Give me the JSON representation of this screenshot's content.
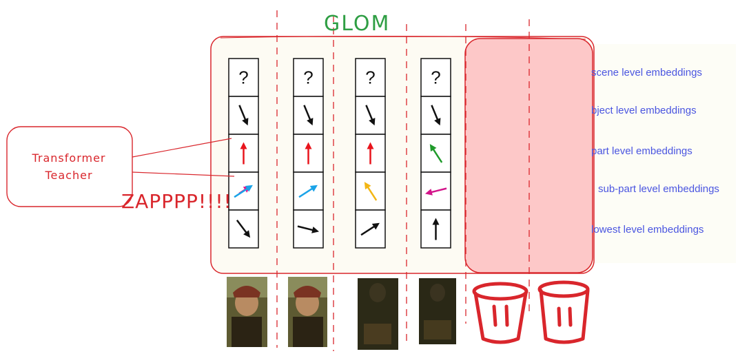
{
  "title": "GLOM",
  "teacher_label_line1": "Transformer",
  "teacher_label_line2": "Teacher",
  "zap_text": "ZAPPPP!!!!",
  "level_labels": [
    "scene level embeddings",
    "bject level embeddings",
    "part level embeddings",
    "sub-part level embeddings",
    "lowest level embeddings"
  ],
  "question_mark": "?",
  "columns": [
    {
      "arrows": [
        {
          "type": "unknown"
        },
        {
          "color": "#111111",
          "dir": "down-right-steep"
        },
        {
          "color": "#e8141c",
          "dir": "up"
        },
        {
          "color": "#1aa3e8",
          "dir": "up-right",
          "extra_color": "#e0198f"
        },
        {
          "color": "#111111",
          "dir": "down-right"
        }
      ]
    },
    {
      "arrows": [
        {
          "type": "unknown"
        },
        {
          "color": "#111111",
          "dir": "down-right-steep"
        },
        {
          "color": "#e8141c",
          "dir": "up"
        },
        {
          "color": "#1aa3e8",
          "dir": "up-right"
        },
        {
          "color": "#111111",
          "dir": "right-slight-down"
        }
      ]
    },
    {
      "arrows": [
        {
          "type": "unknown"
        },
        {
          "color": "#111111",
          "dir": "down-right-steep"
        },
        {
          "color": "#e8141c",
          "dir": "up"
        },
        {
          "color": "#f3b614",
          "dir": "up-left"
        },
        {
          "color": "#111111",
          "dir": "up-right"
        }
      ]
    },
    {
      "arrows": [
        {
          "type": "unknown"
        },
        {
          "color": "#111111",
          "dir": "down-right-steep"
        },
        {
          "color": "#1f9a2a",
          "dir": "up-left"
        },
        {
          "color": "#d3148a",
          "dir": "left"
        },
        {
          "color": "#111111",
          "dir": "up"
        }
      ]
    }
  ],
  "colors": {
    "sketch_red": "#d9262c",
    "title_green": "#2f9e44",
    "mask_fill": "#fdc8c8",
    "panel_fill": "#fdfdf6",
    "label_blue": "#4a55e0"
  }
}
